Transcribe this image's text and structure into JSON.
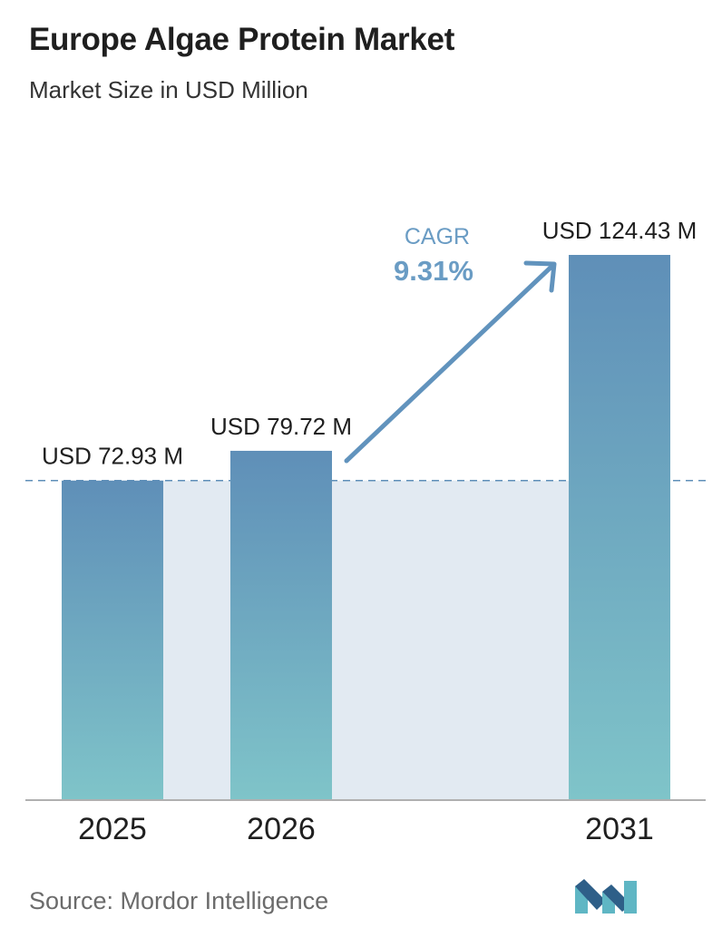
{
  "header": {
    "title": "Europe Algae Protein Market",
    "subtitle": "Market Size in USD Million"
  },
  "footer": {
    "source": "Source:  Mordor Intelligence"
  },
  "colors": {
    "bar_top": "#5f8fb8",
    "bar_bottom": "#7fc4c9",
    "band": "#e2eaf2",
    "reference_line": "#5f8fb8",
    "cagr_text": "#6a9cc4",
    "arrow": "#6193bd",
    "axis": "#b0b0b0",
    "logo_dark": "#2e5f88",
    "logo_light": "#5fb6c4"
  },
  "icons": {
    "brand_logo": "mordor-intelligence-logo"
  },
  "chart_data": {
    "type": "bar",
    "categories": [
      "2025",
      "2026",
      "2031"
    ],
    "values": [
      72.93,
      79.72,
      124.43
    ],
    "data_labels": [
      "USD 72.93 M",
      "USD 79.72 M",
      "USD 124.43 M"
    ],
    "reference_line_value": 72.93,
    "annotation": {
      "label": "CAGR",
      "value": "9.31%"
    },
    "title": "Europe Algae Protein Market",
    "subtitle": "Market Size in USD Million",
    "grid": false,
    "legend": "none"
  }
}
